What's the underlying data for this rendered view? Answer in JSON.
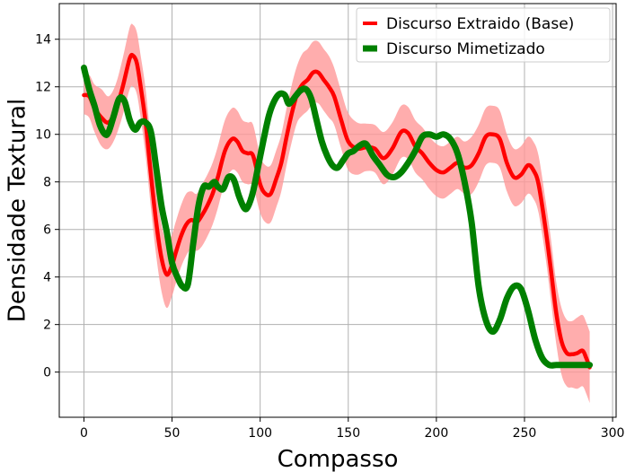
{
  "chart_data": {
    "type": "line",
    "xlabel": "Compasso",
    "ylabel": "Densidade Textural",
    "xlim": [
      -14,
      302
    ],
    "ylim": [
      -1.9,
      15.5
    ],
    "xticks": [
      0,
      50,
      100,
      150,
      200,
      250,
      300
    ],
    "yticks": [
      0,
      2,
      4,
      6,
      8,
      10,
      12,
      14
    ],
    "grid": true,
    "legend_position": "top-right",
    "series": [
      {
        "name": "Discurso Extraido (Base)",
        "color": "#ff0000",
        "band_color": "#ff9999",
        "x": [
          0,
          3,
          6,
          10,
          14,
          18,
          22,
          26,
          28,
          30,
          32,
          35,
          38,
          41,
          44,
          47,
          50,
          52,
          55,
          58,
          61,
          64,
          67,
          70,
          73,
          76,
          80,
          84,
          87,
          90,
          93,
          96,
          100,
          103,
          106,
          109,
          112,
          115,
          118,
          121,
          124,
          127,
          130,
          133,
          136,
          139,
          142,
          146,
          150,
          155,
          160,
          165,
          170,
          175,
          180,
          184,
          188,
          192,
          196,
          200,
          204,
          208,
          212,
          216,
          220,
          224,
          228,
          232,
          236,
          240,
          244,
          248,
          252,
          255,
          258,
          262,
          265,
          268,
          271,
          274,
          277,
          280,
          283,
          285,
          287
        ],
        "y": [
          11.65,
          11.6,
          11.1,
          10.7,
          10.5,
          11.0,
          12.0,
          13.2,
          13.3,
          13.0,
          12.1,
          10.5,
          8.3,
          6.3,
          4.8,
          4.1,
          4.5,
          5.0,
          5.7,
          6.2,
          6.4,
          6.3,
          6.6,
          7.0,
          7.5,
          8.2,
          9.3,
          9.8,
          9.7,
          9.3,
          9.2,
          9.1,
          7.9,
          7.5,
          7.5,
          8.1,
          8.8,
          9.9,
          10.9,
          11.7,
          12.1,
          12.3,
          12.6,
          12.6,
          12.3,
          12.0,
          11.6,
          10.6,
          9.7,
          9.4,
          9.45,
          9.4,
          9.0,
          9.4,
          10.1,
          10.05,
          9.5,
          9.2,
          8.8,
          8.5,
          8.4,
          8.6,
          8.8,
          8.6,
          8.7,
          9.2,
          9.9,
          10.0,
          9.8,
          8.8,
          8.2,
          8.3,
          8.7,
          8.5,
          7.9,
          6.0,
          4.3,
          2.5,
          1.3,
          0.8,
          0.75,
          0.8,
          0.9,
          0.6,
          0.2
        ],
        "band_half_width": [
          0.8,
          0.9,
          1.0,
          1.2,
          1.1,
          1.1,
          1.2,
          1.3,
          1.3,
          1.3,
          1.3,
          1.4,
          1.4,
          1.4,
          1.4,
          1.4,
          1.3,
          1.3,
          1.3,
          1.3,
          1.2,
          1.2,
          1.3,
          1.3,
          1.3,
          1.3,
          1.3,
          1.3,
          1.3,
          1.3,
          1.3,
          1.3,
          1.2,
          1.2,
          1.2,
          1.2,
          1.2,
          1.2,
          1.2,
          1.2,
          1.3,
          1.3,
          1.3,
          1.3,
          1.3,
          1.3,
          1.2,
          1.2,
          1.2,
          1.1,
          1.0,
          1.0,
          1.1,
          1.1,
          1.1,
          1.1,
          1.1,
          1.1,
          1.1,
          1.1,
          1.1,
          1.1,
          1.1,
          1.1,
          1.2,
          1.2,
          1.2,
          1.2,
          1.2,
          1.2,
          1.2,
          1.2,
          1.2,
          1.2,
          1.2,
          1.2,
          1.3,
          1.3,
          1.4,
          1.4,
          1.4,
          1.5,
          1.5,
          1.5,
          1.5
        ]
      },
      {
        "name": "Discurso Mimetizado",
        "color": "#008000",
        "x": [
          0,
          3,
          6,
          9,
          12,
          14,
          17,
          20,
          23,
          26,
          29,
          32,
          35,
          38,
          41,
          44,
          47,
          50,
          53,
          56,
          59,
          62,
          65,
          68,
          71,
          74,
          76,
          79,
          82,
          85,
          88,
          91,
          93,
          96,
          99,
          102,
          105,
          108,
          111,
          114,
          116,
          118,
          120,
          123,
          126,
          129,
          132,
          135,
          138,
          141,
          144,
          147,
          150,
          153,
          156,
          160,
          164,
          168,
          172,
          176,
          180,
          184,
          188,
          192,
          196,
          200,
          204,
          208,
          212,
          216,
          220,
          224,
          228,
          232,
          236,
          240,
          244,
          248,
          252,
          256,
          260,
          264,
          268,
          272,
          276,
          280,
          284,
          287
        ],
        "y": [
          12.8,
          11.9,
          11.2,
          10.4,
          10.0,
          10.1,
          10.8,
          11.5,
          11.4,
          10.6,
          10.2,
          10.5,
          10.5,
          10.1,
          8.6,
          7.0,
          5.9,
          4.6,
          4.0,
          3.6,
          3.7,
          5.4,
          7.0,
          7.8,
          7.8,
          8.0,
          7.8,
          7.7,
          8.2,
          8.1,
          7.4,
          6.9,
          6.95,
          7.6,
          8.7,
          9.8,
          10.8,
          11.4,
          11.7,
          11.65,
          11.3,
          11.4,
          11.6,
          11.85,
          11.9,
          11.5,
          10.6,
          9.7,
          9.1,
          8.7,
          8.6,
          8.9,
          9.2,
          9.3,
          9.5,
          9.6,
          9.1,
          8.7,
          8.3,
          8.2,
          8.4,
          8.8,
          9.3,
          9.9,
          10.0,
          9.9,
          10.0,
          9.8,
          9.2,
          8.0,
          6.3,
          3.6,
          2.2,
          1.7,
          2.2,
          3.1,
          3.6,
          3.5,
          2.6,
          1.4,
          0.6,
          0.3,
          0.3,
          0.3,
          0.3,
          0.3,
          0.3,
          0.3
        ]
      }
    ]
  }
}
